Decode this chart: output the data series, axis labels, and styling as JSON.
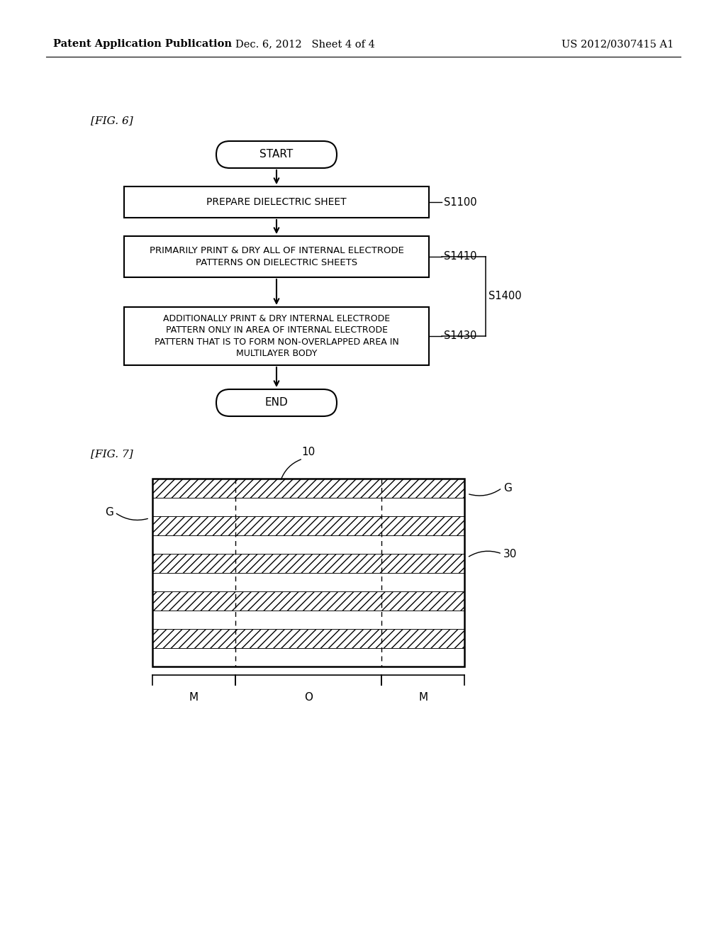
{
  "bg_color": "#ffffff",
  "header_left": "Patent Application Publication",
  "header_mid": "Dec. 6, 2012   Sheet 4 of 4",
  "header_right": "US 2012/0307415 A1",
  "fig6_label": "[FIG. 6]",
  "fig7_label": "[FIG. 7]",
  "flowchart": {
    "start_text": "START",
    "box1_text": "PREPARE DIELECTRIC SHEET",
    "box2_text": "PRIMARILY PRINT & DRY ALL OF INTERNAL ELECTRODE\nPATTERNS ON DIELECTRIC SHEETS",
    "box3_text": "ADDITIONALLY PRINT & DRY INTERNAL ELECTRODE\nPATTERN ONLY IN AREA OF INTERNAL ELECTRODE\nPATTERN THAT IS TO FORM NON-OVERLAPPED AREA IN\nMULTILAYER BODY",
    "end_text": "END",
    "label_s1100": "S1100",
    "label_s1410": "S1410",
    "label_s1430": "S1430",
    "label_s1400": "S1400"
  },
  "diagram": {
    "label_10": "10",
    "label_G_top_right": "G",
    "label_G_left": "G",
    "label_30": "30",
    "label_M_left": "M",
    "label_O": "O",
    "label_M_right": "M"
  }
}
